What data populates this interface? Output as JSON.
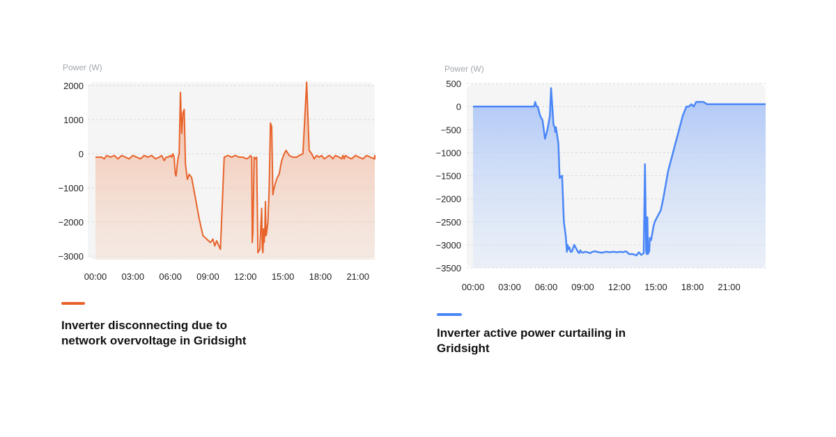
{
  "chart_data": [
    {
      "type": "area",
      "ylabel": "Power (W)",
      "color": "#e8622a",
      "ylim": [
        -3100,
        2100
      ],
      "yticks": [
        2000,
        1000,
        0,
        -1000,
        -2000,
        -3000
      ],
      "ytick_labels": [
        "2000",
        "1000",
        "0",
        "−1000",
        "−2000",
        "−3000"
      ],
      "xticks": [
        "00:00",
        "03:00",
        "06:00",
        "09:00",
        "12:00",
        "15:00",
        "18:00",
        "21:00"
      ],
      "x_range_hours": [
        0,
        24
      ],
      "grid": true,
      "legend_label": "Inverter disconnecting due to network overvoltage in Gridsight",
      "series": [
        {
          "x": [
            0,
            0.5,
            0.7,
            0.9,
            1.2,
            1.5,
            1.8,
            2.1,
            2.4,
            2.7,
            3.0,
            3.3,
            3.6,
            3.9,
            4.2,
            4.5,
            4.8,
            5.1,
            5.3,
            5.5,
            5.65,
            5.8,
            6.0,
            6.1,
            6.2,
            6.3,
            6.35,
            6.4,
            6.45,
            6.5,
            6.55,
            6.62,
            6.7,
            6.8,
            6.9,
            7.0,
            7.1,
            7.2,
            7.35,
            7.5,
            7.7,
            8.0,
            8.3,
            8.6,
            8.9,
            9.2,
            9.4,
            9.55,
            9.7,
            10.0,
            10.3,
            10.6,
            10.9,
            11.2,
            11.5,
            11.8,
            12.1,
            12.3,
            12.4,
            12.5,
            12.55,
            12.6,
            12.7,
            12.8,
            12.9,
            13.0,
            13.15,
            13.3,
            13.35,
            13.4,
            13.45,
            13.5,
            13.55,
            13.6,
            13.65,
            13.7,
            13.8,
            13.9,
            14.0,
            14.1,
            14.2,
            14.3,
            14.45,
            14.55,
            14.7,
            14.8,
            14.9,
            15.0,
            15.1,
            15.25,
            15.5,
            15.8,
            16.1,
            16.3,
            16.6,
            16.9,
            17.1,
            17.3,
            17.5,
            17.7,
            17.9,
            18.1,
            18.3,
            18.5,
            18.7,
            18.9,
            19.0,
            19.2,
            19.5,
            19.7,
            19.8,
            19.85,
            19.9,
            20.0,
            20.2,
            20.5,
            20.8,
            21.1,
            21.4,
            21.7,
            22.0,
            22.3,
            22.6,
            22.9,
            23.2,
            23.5,
            23.8,
            24.0
          ],
          "values": [
            -100,
            -100,
            -150,
            -50,
            -100,
            -50,
            -150,
            -50,
            -100,
            -150,
            -50,
            -100,
            -150,
            -50,
            -100,
            -50,
            -150,
            -100,
            -50,
            -200,
            -100,
            -100,
            -50,
            -100,
            0,
            -100,
            -400,
            -600,
            -650,
            -500,
            -300,
            -100,
            0,
            1800,
            600,
            1200,
            1300,
            -300,
            -750,
            -600,
            -700,
            -1300,
            -1900,
            -2400,
            -2500,
            -2600,
            -2500,
            -2700,
            -2550,
            -2800,
            -100,
            -50,
            -100,
            -50,
            -100,
            -100,
            -150,
            -100,
            -50,
            -100,
            -2600,
            -2300,
            -100,
            -150,
            -100,
            -2900,
            -2800,
            -1600,
            -2750,
            -2900,
            -2200,
            -2600,
            -2300,
            -1400,
            -2400,
            -2300,
            -2000,
            -1000,
            900,
            800,
            -1200,
            -1000,
            -800,
            -700,
            -600,
            -400,
            -200,
            -100,
            0,
            100,
            -50,
            -100,
            -100,
            -50,
            0,
            2100,
            100,
            0,
            -150,
            -50,
            -100,
            -50,
            -150,
            -100,
            -50,
            -100,
            -150,
            -50,
            -100,
            -150,
            -50,
            -100,
            -150,
            -50,
            -100,
            -150,
            -50,
            -100,
            -150,
            -50,
            -100,
            -150,
            -50,
            -100,
            -100,
            -50,
            -150,
            -100
          ]
        }
      ]
    },
    {
      "type": "area",
      "ylabel": "Power (W)",
      "color": "#4a86f7",
      "ylim": [
        -3500,
        500
      ],
      "yticks": [
        500,
        0,
        -500,
        -1000,
        -1500,
        -2000,
        -2500,
        -3000,
        -3500
      ],
      "ytick_labels": [
        "500",
        "0",
        "−500",
        "−1000",
        "−1500",
        "−2000",
        "−2500",
        "−3000",
        "−3500"
      ],
      "xticks": [
        "00:00",
        "03:00",
        "06:00",
        "09:00",
        "12:00",
        "15:00",
        "18:00",
        "21:00"
      ],
      "x_range_hours": [
        0,
        24
      ],
      "grid": true,
      "legend_label": "Inverter active power curtailing in Gridsight",
      "series": [
        {
          "x": [
            0,
            4.5,
            5.0,
            5.1,
            5.2,
            5.3,
            5.5,
            5.7,
            5.9,
            6.1,
            6.3,
            6.4,
            6.5,
            6.6,
            6.7,
            6.75,
            6.8,
            7.0,
            7.1,
            7.3,
            7.45,
            7.6,
            7.7,
            7.75,
            7.8,
            7.9,
            8.0,
            8.1,
            8.3,
            8.4,
            8.5,
            8.6,
            8.7,
            8.8,
            8.9,
            9.0,
            9.2,
            9.4,
            9.6,
            9.8,
            10.0,
            10.3,
            10.6,
            10.9,
            11.2,
            11.5,
            11.8,
            12.1,
            12.3,
            12.5,
            12.6,
            12.8,
            13.1,
            13.4,
            13.6,
            13.8,
            14.0,
            14.1,
            14.2,
            14.25,
            14.3,
            14.35,
            14.4,
            14.45,
            14.5,
            14.6,
            14.7,
            14.8,
            14.9,
            15.0,
            15.2,
            15.4,
            15.6,
            15.8,
            16.0,
            16.3,
            16.6,
            16.9,
            17.2,
            17.5,
            17.7,
            17.9,
            18.1,
            18.3,
            18.5,
            18.7,
            18.9,
            19.2,
            19.5,
            19.7,
            19.9,
            20.2,
            20.6,
            21.0,
            21.5,
            22.0,
            22.5,
            23.0,
            23.5,
            23.9,
            24.0
          ],
          "values": [
            0,
            0,
            0,
            100,
            0,
            0,
            -200,
            -300,
            -700,
            -500,
            -200,
            400,
            0,
            -400,
            -450,
            -550,
            -450,
            -800,
            -1550,
            -1500,
            -2500,
            -2800,
            -3150,
            -3000,
            -3100,
            -3050,
            -3150,
            -3150,
            -3000,
            -3050,
            -3100,
            -3150,
            -3180,
            -3120,
            -3160,
            -3170,
            -3150,
            -3160,
            -3180,
            -3150,
            -3140,
            -3160,
            -3170,
            -3150,
            -3160,
            -3150,
            -3160,
            -3150,
            -3160,
            -3140,
            -3150,
            -3200,
            -3200,
            -3230,
            -3160,
            -3220,
            -3180,
            -1250,
            -3150,
            -3200,
            -2400,
            -3200,
            -3150,
            -3150,
            -2850,
            -2900,
            -2750,
            -2600,
            -2500,
            -2450,
            -2350,
            -2250,
            -2000,
            -1700,
            -1400,
            -1100,
            -800,
            -500,
            -200,
            0,
            0,
            50,
            0,
            100,
            100,
            100,
            100,
            50,
            50,
            50,
            50,
            50,
            50,
            50,
            50,
            50,
            50,
            50,
            50,
            50,
            50
          ]
        }
      ]
    }
  ]
}
